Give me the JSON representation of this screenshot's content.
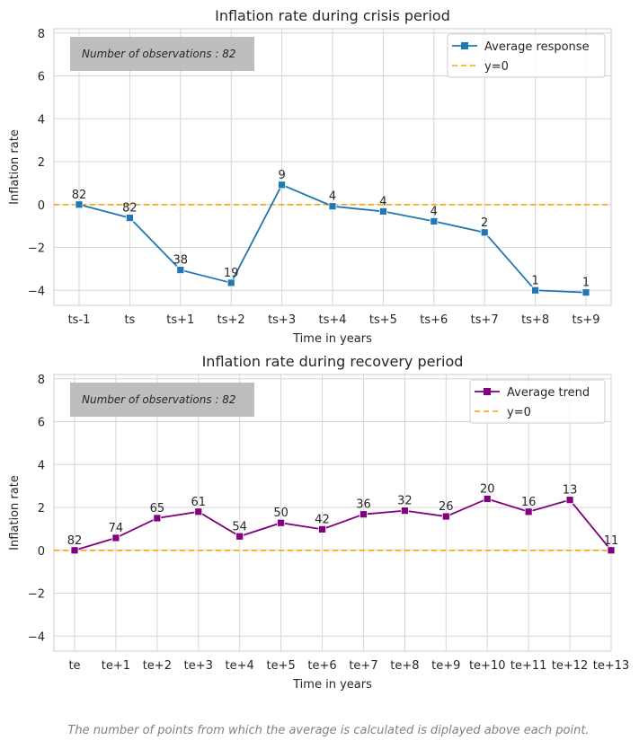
{
  "footnote": "The number of points from which the average is calculated is diplayed above each point.",
  "chart_data": [
    {
      "type": "line",
      "title": "Inflation rate during crisis period",
      "xlabel": "Time in years",
      "ylabel": "Inflation rate",
      "categories": [
        "ts-1",
        "ts",
        "ts+1",
        "ts+2",
        "ts+3",
        "ts+4",
        "ts+5",
        "ts+6",
        "ts+7",
        "ts+8",
        "ts+9"
      ],
      "series": [
        {
          "name": "Average response",
          "color": "#1f77b4",
          "values": [
            0.0,
            -0.62,
            -3.05,
            -3.65,
            0.92,
            -0.08,
            -0.32,
            -0.78,
            -1.3,
            -4.0,
            -4.1
          ],
          "labels": [
            "82",
            "82",
            "38",
            "19",
            "9",
            "4",
            "4",
            "4",
            "2",
            "1",
            "1"
          ]
        }
      ],
      "reference_line": {
        "name": "y=0",
        "y": 0,
        "color": "#ffa500",
        "style": "dashed"
      },
      "ylim": [
        -4.7,
        8.2
      ],
      "yticks": [
        -4,
        -2,
        0,
        2,
        4,
        6,
        8
      ],
      "grid": true,
      "legend": "top-right",
      "annotation": "Number of observations : 82"
    },
    {
      "type": "line",
      "title": "Inflation rate during recovery period",
      "xlabel": "Time in years",
      "ylabel": "Inflation rate",
      "categories": [
        "te",
        "te+1",
        "te+2",
        "te+3",
        "te+4",
        "te+5",
        "te+6",
        "te+7",
        "te+8",
        "te+9",
        "te+10",
        "te+11",
        "te+12",
        "te+13"
      ],
      "series": [
        {
          "name": "Average trend",
          "color": "#800080",
          "values": [
            0.0,
            0.58,
            1.5,
            1.8,
            0.65,
            1.28,
            0.98,
            1.68,
            1.85,
            1.58,
            2.4,
            1.8,
            2.35,
            0.0
          ],
          "labels": [
            "82",
            "74",
            "65",
            "61",
            "54",
            "50",
            "42",
            "36",
            "32",
            "26",
            "20",
            "16",
            "13",
            "11"
          ]
        }
      ],
      "reference_line": {
        "name": "y=0",
        "y": 0,
        "color": "#ffa500",
        "style": "dashed"
      },
      "ylim": [
        -4.7,
        8.2
      ],
      "yticks": [
        -4,
        -2,
        0,
        2,
        4,
        6,
        8
      ],
      "grid": true,
      "legend": "top-right",
      "annotation": "Number of observations : 82"
    }
  ]
}
